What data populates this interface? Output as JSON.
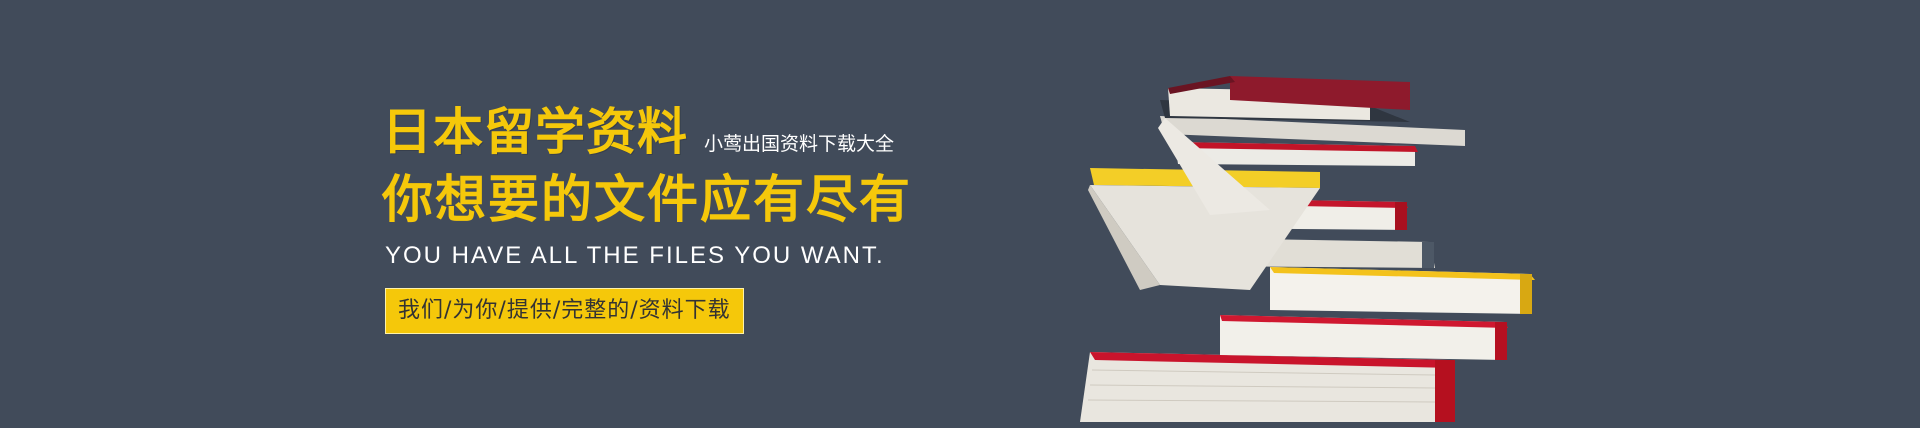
{
  "banner": {
    "title": "日本留学资料",
    "subtitle": "小莺出国资料下载大全",
    "slogan": "你想要的文件应有尽有",
    "english": "YOU HAVE ALL THE FILES YOU WANT.",
    "tagline": "我们/为你/提供/完整的/资料下载",
    "colors": {
      "background": "#414b5a",
      "accent": "#f5c80a",
      "text": "#ffffff"
    },
    "image": "stack-of-books"
  }
}
